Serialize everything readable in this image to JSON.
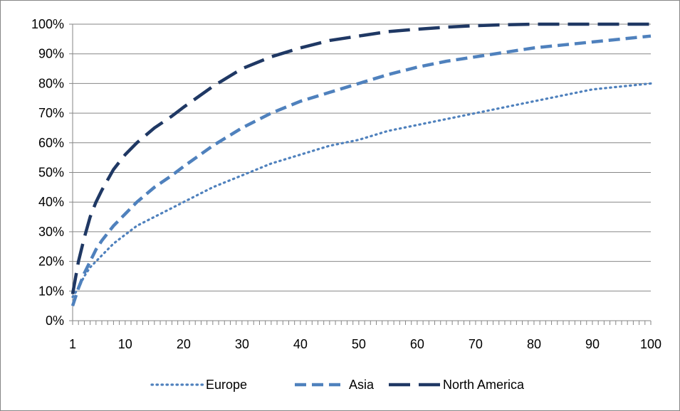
{
  "chart_data": {
    "type": "line",
    "title": "",
    "xlabel": "",
    "ylabel": "",
    "xlim": [
      1,
      100
    ],
    "ylim": [
      0,
      100
    ],
    "y_ticks": [
      0,
      10,
      20,
      30,
      40,
      50,
      60,
      70,
      80,
      90,
      100
    ],
    "y_tick_labels": [
      "0%",
      "10%",
      "20%",
      "30%",
      "40%",
      "50%",
      "60%",
      "70%",
      "80%",
      "90%",
      "100%"
    ],
    "x_ticks": [
      1,
      10,
      20,
      30,
      40,
      50,
      60,
      70,
      80,
      90,
      100
    ],
    "x_tick_labels": [
      "1",
      "10",
      "20",
      "30",
      "40",
      "50",
      "60",
      "70",
      "80",
      "90",
      "100"
    ],
    "grid": "horizontal",
    "legend_position": "bottom",
    "x": [
      1,
      2,
      3,
      4,
      5,
      6,
      8,
      10,
      12,
      15,
      18,
      20,
      25,
      30,
      35,
      40,
      45,
      50,
      55,
      60,
      65,
      70,
      75,
      80,
      85,
      90,
      95,
      100
    ],
    "series": [
      {
        "name": "Europe",
        "style": "dotted",
        "color": "#4f81bd",
        "values": [
          8,
          11,
          15,
          18,
          20,
          22,
          26,
          29,
          32,
          35,
          38,
          40,
          45,
          49,
          53,
          56,
          59,
          61,
          64,
          66,
          68,
          70,
          72,
          74,
          76,
          78,
          79,
          80
        ]
      },
      {
        "name": "Asia",
        "style": "dashed",
        "color": "#4f81bd",
        "values": [
          5,
          11,
          16,
          20,
          24,
          27,
          32,
          36,
          40,
          45,
          49,
          52,
          59,
          65,
          70,
          74,
          77,
          80,
          83,
          85.5,
          87.5,
          89,
          90.5,
          92,
          93,
          94,
          95,
          96
        ]
      },
      {
        "name": "North America",
        "style": "long-dashed",
        "color": "#1f3864",
        "values": [
          9,
          20,
          28,
          35,
          40,
          44,
          51,
          56,
          60,
          65,
          69,
          72,
          79,
          85,
          89,
          92,
          94.5,
          96,
          97.5,
          98.3,
          99,
          99.5,
          99.8,
          100,
          100,
          100,
          100,
          100
        ]
      }
    ]
  }
}
